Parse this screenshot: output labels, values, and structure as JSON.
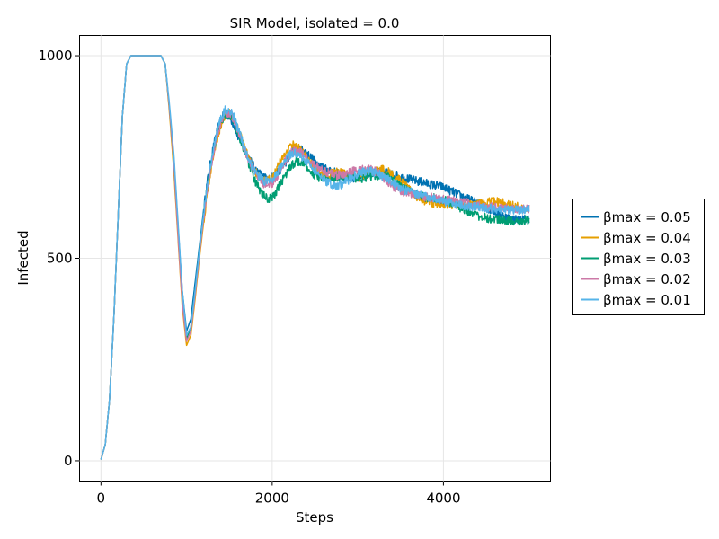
{
  "chart_data": {
    "type": "line",
    "title": "SIR Model, isolated = 0.0",
    "xlabel": "Steps",
    "ylabel": "Infected",
    "xlim": [
      -250,
      5250
    ],
    "ylim": [
      -50,
      1050
    ],
    "xticks": [
      0,
      2000,
      4000
    ],
    "yticks": [
      0,
      500,
      1000
    ],
    "grid": true,
    "legend_position": "right",
    "x_step": 50,
    "base_x": [
      0,
      50,
      100,
      150,
      200,
      250,
      300,
      350,
      400,
      450,
      500,
      550,
      600,
      650,
      700,
      750,
      800,
      850,
      900,
      950,
      1000,
      1050,
      1100,
      1150,
      1200,
      1250,
      1300,
      1350,
      1400,
      1450,
      1500,
      1550,
      1600,
      1650,
      1700,
      1750,
      1800,
      1850,
      1900,
      1950,
      2000,
      2050,
      2100,
      2150,
      2200,
      2250,
      2300,
      2350,
      2400,
      2450,
      2500,
      2550,
      2600,
      2650,
      2700,
      2750,
      2800,
      2850,
      2900,
      2950,
      3000,
      3050,
      3100,
      3150,
      3200,
      3250,
      3300,
      3350,
      3400,
      3450,
      3500,
      3550,
      3600,
      3650,
      3700,
      3750,
      3800,
      3850,
      3900,
      3950,
      4000,
      4050,
      4100,
      4150,
      4200,
      4250,
      4300,
      4350,
      4400,
      4450,
      4500,
      4550,
      4600,
      4650,
      4700,
      4750,
      4800,
      4850,
      4900,
      4950,
      5000
    ],
    "series": [
      {
        "name": "βmax = 0.05",
        "color": "#0072b2",
        "values": [
          3,
          40,
          150,
          350,
          600,
          850,
          980,
          1000,
          1000,
          1000,
          1000,
          1000,
          1000,
          1000,
          1000,
          980,
          870,
          750,
          580,
          420,
          320,
          350,
          440,
          530,
          620,
          700,
          760,
          810,
          840,
          860,
          850,
          830,
          800,
          780,
          760,
          740,
          720,
          710,
          700,
          695,
          700,
          710,
          720,
          735,
          750,
          765,
          770,
          768,
          760,
          750,
          740,
          730,
          725,
          720,
          715,
          710,
          705,
          700,
          700,
          698,
          700,
          702,
          705,
          708,
          710,
          712,
          712,
          710,
          708,
          705,
          700,
          698,
          695,
          693,
          690,
          688,
          685,
          683,
          680,
          678,
          675,
          670,
          665,
          660,
          655,
          650,
          645,
          640,
          635,
          630,
          625,
          620,
          615,
          610,
          605,
          600,
          598,
          596,
          595,
          596,
          598
        ]
      },
      {
        "name": "βmax = 0.04",
        "color": "#e69f00",
        "values": [
          3,
          40,
          150,
          350,
          600,
          850,
          980,
          1000,
          1000,
          1000,
          1000,
          1000,
          1000,
          1000,
          1000,
          980,
          860,
          720,
          550,
          380,
          285,
          310,
          400,
          500,
          590,
          670,
          740,
          790,
          830,
          855,
          860,
          845,
          820,
          790,
          760,
          735,
          715,
          700,
          690,
          690,
          700,
          720,
          740,
          760,
          775,
          780,
          775,
          765,
          750,
          735,
          720,
          710,
          705,
          705,
          710,
          712,
          712,
          708,
          705,
          702,
          700,
          702,
          705,
          710,
          715,
          718,
          718,
          715,
          710,
          700,
          690,
          680,
          670,
          660,
          650,
          645,
          640,
          638,
          636,
          635,
          634,
          634,
          633,
          632,
          632,
          632,
          633,
          634,
          635,
          636,
          638,
          640,
          640,
          638,
          636,
          633,
          630,
          628,
          625,
          622,
          620
        ]
      },
      {
        "name": "βmax = 0.03",
        "color": "#009e73",
        "values": [
          3,
          40,
          150,
          350,
          600,
          850,
          980,
          1000,
          1000,
          1000,
          1000,
          1000,
          1000,
          1000,
          1000,
          980,
          870,
          740,
          570,
          400,
          300,
          330,
          420,
          520,
          610,
          690,
          750,
          800,
          835,
          855,
          855,
          840,
          810,
          780,
          750,
          720,
          690,
          670,
          655,
          645,
          650,
          665,
          685,
          705,
          720,
          735,
          740,
          735,
          725,
          715,
          705,
          698,
          695,
          695,
          698,
          700,
          702,
          703,
          703,
          700,
          698,
          698,
          700,
          702,
          704,
          705,
          703,
          700,
          695,
          690,
          680,
          672,
          665,
          660,
          655,
          652,
          650,
          650,
          650,
          648,
          645,
          640,
          635,
          630,
          625,
          620,
          615,
          610,
          606,
          602,
          600,
          598,
          596,
          595,
          594,
          593,
          592,
          592,
          593,
          594,
          596
        ]
      },
      {
        "name": "βmax = 0.02",
        "color": "#cc79a7",
        "values": [
          3,
          40,
          150,
          350,
          600,
          850,
          980,
          1000,
          1000,
          1000,
          1000,
          1000,
          1000,
          1000,
          1000,
          980,
          870,
          740,
          560,
          390,
          295,
          320,
          410,
          510,
          600,
          680,
          745,
          800,
          835,
          855,
          860,
          845,
          815,
          785,
          755,
          730,
          710,
          695,
          685,
          680,
          685,
          700,
          720,
          740,
          755,
          765,
          765,
          758,
          748,
          738,
          730,
          722,
          716,
          712,
          708,
          705,
          705,
          708,
          712,
          716,
          718,
          720,
          720,
          718,
          715,
          710,
          700,
          690,
          680,
          672,
          666,
          662,
          660,
          658,
          656,
          654,
          652,
          650,
          648,
          646,
          645,
          644,
          643,
          642,
          640,
          638,
          636,
          634,
          632,
          630,
          628,
          626,
          625,
          624,
          623,
          622,
          622,
          622,
          622,
          622,
          622
        ]
      },
      {
        "name": "βmax = 0.01",
        "color": "#56b4e9",
        "values": [
          3,
          40,
          150,
          350,
          600,
          850,
          980,
          1000,
          1000,
          1000,
          1000,
          1000,
          1000,
          1000,
          1000,
          980,
          880,
          760,
          590,
          420,
          310,
          330,
          420,
          520,
          610,
          690,
          755,
          810,
          845,
          865,
          868,
          850,
          820,
          790,
          760,
          735,
          712,
          700,
          692,
          688,
          693,
          708,
          725,
          742,
          755,
          760,
          758,
          750,
          740,
          728,
          716,
          705,
          695,
          688,
          682,
          680,
          682,
          688,
          695,
          702,
          708,
          712,
          715,
          715,
          712,
          708,
          702,
          695,
          688,
          680,
          673,
          668,
          664,
          661,
          658,
          655,
          652,
          649,
          646,
          643,
          640,
          638,
          636,
          634,
          632,
          630,
          628,
          627,
          626,
          625,
          624,
          623,
          622,
          621,
          620,
          620,
          620,
          620,
          620,
          620,
          620
        ]
      }
    ]
  }
}
